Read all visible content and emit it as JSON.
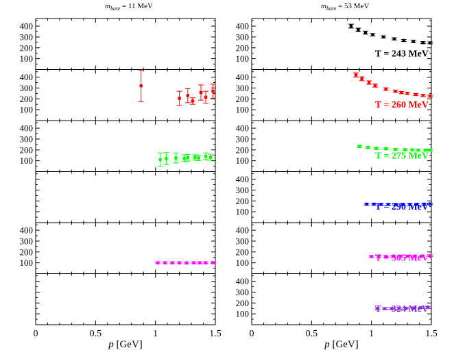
{
  "chart_data": {
    "type": "scatter",
    "xlabel_italic": "p",
    "xlabel_rest": " [GeV]",
    "xlim": [
      0,
      1.5
    ],
    "ylim": [
      0,
      470
    ],
    "xticks": [
      "0",
      "0.5",
      "1",
      "1.5"
    ],
    "yticks": [
      "100",
      "200",
      "300",
      "400"
    ],
    "columns": [
      {
        "title_var": "m",
        "title_sub": "bare",
        "title_rest": " = 11 MeV",
        "panels": [
          {
            "temperature": "T = 243 MeV",
            "color": "#000000",
            "points": []
          },
          {
            "temperature": "T = 260 MeV",
            "color": "#ff0000",
            "points": [
              {
                "x": 0.88,
                "y": 320,
                "err": 145
              },
              {
                "x": 1.2,
                "y": 205,
                "err": 65
              },
              {
                "x": 1.27,
                "y": 230,
                "err": 65
              },
              {
                "x": 1.31,
                "y": 180,
                "err": 30
              },
              {
                "x": 1.38,
                "y": 258,
                "err": 70
              },
              {
                "x": 1.42,
                "y": 215,
                "err": 55
              },
              {
                "x": 1.48,
                "y": 270,
                "err": 65
              }
            ]
          },
          {
            "temperature": "T = 275 MeV",
            "color": "#00ff00",
            "points": [
              {
                "x": 1.04,
                "y": 110,
                "err": 60
              },
              {
                "x": 1.09,
                "y": 120,
                "err": 55
              },
              {
                "x": 1.17,
                "y": 125,
                "err": 45
              },
              {
                "x": 1.24,
                "y": 122,
                "err": 30
              },
              {
                "x": 1.27,
                "y": 128,
                "err": 30
              },
              {
                "x": 1.33,
                "y": 130,
                "err": 25
              },
              {
                "x": 1.36,
                "y": 126,
                "err": 25
              },
              {
                "x": 1.42,
                "y": 140,
                "err": 30
              },
              {
                "x": 1.46,
                "y": 132,
                "err": 28
              }
            ]
          },
          {
            "temperature": "T = 290 MeV",
            "color": "#0000ff",
            "points": []
          },
          {
            "temperature": "T = 305 MeV",
            "color": "#ff00ff",
            "points": [
              {
                "x": 1.02,
                "y": 100,
                "err": 8
              },
              {
                "x": 1.08,
                "y": 100,
                "err": 8
              },
              {
                "x": 1.14,
                "y": 100,
                "err": 8
              },
              {
                "x": 1.2,
                "y": 100,
                "err": 8
              },
              {
                "x": 1.26,
                "y": 99,
                "err": 8
              },
              {
                "x": 1.32,
                "y": 100,
                "err": 8
              },
              {
                "x": 1.37,
                "y": 100,
                "err": 8
              },
              {
                "x": 1.42,
                "y": 100,
                "err": 8
              },
              {
                "x": 1.48,
                "y": 101,
                "err": 8
              }
            ]
          },
          {
            "temperature": "T = 324 MeV",
            "color": "#8a2be2",
            "points": []
          }
        ]
      },
      {
        "title_var": "m",
        "title_sub": "bare",
        "title_rest": " = 53 MeV",
        "panels": [
          {
            "temperature": "T = 243 MeV",
            "color": "#000000",
            "points": [
              {
                "x": 0.83,
                "y": 400,
                "err": 18
              },
              {
                "x": 0.89,
                "y": 365,
                "err": 16
              },
              {
                "x": 0.95,
                "y": 340,
                "err": 14
              },
              {
                "x": 1.01,
                "y": 320,
                "err": 12
              },
              {
                "x": 1.1,
                "y": 300,
                "err": 10
              },
              {
                "x": 1.19,
                "y": 282,
                "err": 10
              },
              {
                "x": 1.27,
                "y": 268,
                "err": 9
              },
              {
                "x": 1.35,
                "y": 258,
                "err": 9
              },
              {
                "x": 1.43,
                "y": 248,
                "err": 9
              },
              {
                "x": 1.49,
                "y": 246,
                "err": 9
              }
            ]
          },
          {
            "temperature": "T = 260 MeV",
            "color": "#ff0000",
            "points": [
              {
                "x": 0.87,
                "y": 420,
                "err": 20
              },
              {
                "x": 0.92,
                "y": 385,
                "err": 18
              },
              {
                "x": 0.98,
                "y": 350,
                "err": 16
              },
              {
                "x": 1.03,
                "y": 322,
                "err": 14
              },
              {
                "x": 1.12,
                "y": 290,
                "err": 12
              },
              {
                "x": 1.2,
                "y": 270,
                "err": 11
              },
              {
                "x": 1.25,
                "y": 258,
                "err": 10
              },
              {
                "x": 1.3,
                "y": 250,
                "err": 10
              },
              {
                "x": 1.37,
                "y": 240,
                "err": 10
              },
              {
                "x": 1.43,
                "y": 232,
                "err": 9
              },
              {
                "x": 1.49,
                "y": 225,
                "err": 9
              }
            ]
          },
          {
            "temperature": "T = 275 MeV",
            "color": "#00ff00",
            "points": [
              {
                "x": 0.9,
                "y": 232,
                "err": 10
              },
              {
                "x": 0.97,
                "y": 222,
                "err": 9
              },
              {
                "x": 1.04,
                "y": 212,
                "err": 9
              },
              {
                "x": 1.12,
                "y": 210,
                "err": 8
              },
              {
                "x": 1.2,
                "y": 205,
                "err": 8
              },
              {
                "x": 1.28,
                "y": 202,
                "err": 8
              },
              {
                "x": 1.34,
                "y": 200,
                "err": 8
              },
              {
                "x": 1.39,
                "y": 198,
                "err": 8
              },
              {
                "x": 1.45,
                "y": 198,
                "err": 8
              },
              {
                "x": 1.49,
                "y": 198,
                "err": 8
              }
            ]
          },
          {
            "temperature": "T = 290 MeV",
            "color": "#0000ff",
            "points": [
              {
                "x": 0.96,
                "y": 170,
                "err": 8
              },
              {
                "x": 1.02,
                "y": 170,
                "err": 8
              },
              {
                "x": 1.08,
                "y": 168,
                "err": 8
              },
              {
                "x": 1.14,
                "y": 168,
                "err": 8
              },
              {
                "x": 1.2,
                "y": 167,
                "err": 8
              },
              {
                "x": 1.26,
                "y": 168,
                "err": 8
              },
              {
                "x": 1.32,
                "y": 168,
                "err": 8
              },
              {
                "x": 1.38,
                "y": 169,
                "err": 8
              },
              {
                "x": 1.44,
                "y": 170,
                "err": 8
              },
              {
                "x": 1.49,
                "y": 172,
                "err": 8
              }
            ]
          },
          {
            "temperature": "T = 305 MeV",
            "color": "#ff00ff",
            "points": [
              {
                "x": 1.0,
                "y": 158,
                "err": 7
              },
              {
                "x": 1.06,
                "y": 158,
                "err": 7
              },
              {
                "x": 1.12,
                "y": 158,
                "err": 7
              },
              {
                "x": 1.18,
                "y": 159,
                "err": 7
              },
              {
                "x": 1.24,
                "y": 160,
                "err": 7
              },
              {
                "x": 1.3,
                "y": 160,
                "err": 7
              },
              {
                "x": 1.36,
                "y": 161,
                "err": 7
              },
              {
                "x": 1.42,
                "y": 162,
                "err": 7
              },
              {
                "x": 1.49,
                "y": 165,
                "err": 7
              }
            ]
          },
          {
            "temperature": "T = 324 MeV",
            "color": "#8a2be2",
            "points": [
              {
                "x": 1.05,
                "y": 148,
                "err": 7
              },
              {
                "x": 1.11,
                "y": 148,
                "err": 7
              },
              {
                "x": 1.17,
                "y": 149,
                "err": 7
              },
              {
                "x": 1.23,
                "y": 150,
                "err": 7
              },
              {
                "x": 1.29,
                "y": 151,
                "err": 7
              },
              {
                "x": 1.35,
                "y": 153,
                "err": 7
              },
              {
                "x": 1.41,
                "y": 156,
                "err": 7
              },
              {
                "x": 1.47,
                "y": 160,
                "err": 7
              }
            ]
          }
        ]
      }
    ]
  }
}
